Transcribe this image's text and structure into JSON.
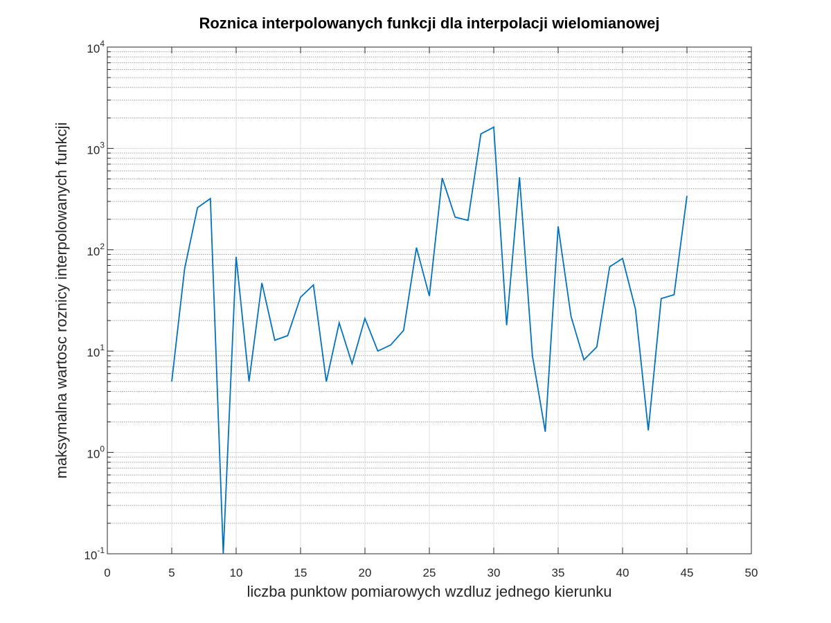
{
  "chart_data": {
    "type": "line",
    "title": "Roznica interpolowanych funkcji dla interpolacji wielomianowej",
    "xlabel": "liczba punktow pomiarowych wzdluz jednego kierunku",
    "ylabel": "maksymalna wartosc roznicy interpolowanych funkcji",
    "xlim": [
      0,
      50
    ],
    "ylim": [
      0.1,
      10000
    ],
    "yscale": "log",
    "grid": true,
    "x_ticks": [
      "0",
      "5",
      "10",
      "15",
      "20",
      "25",
      "30",
      "35",
      "40",
      "45",
      "50"
    ],
    "y_ticks": [
      {
        "base": "10",
        "exp": "-1"
      },
      {
        "base": "10",
        "exp": "0"
      },
      {
        "base": "10",
        "exp": "1"
      },
      {
        "base": "10",
        "exp": "2"
      },
      {
        "base": "10",
        "exp": "3"
      },
      {
        "base": "10",
        "exp": "4"
      }
    ],
    "series": [
      {
        "color": "#0072bd",
        "x": [
          5,
          6,
          7,
          8,
          9,
          10,
          11,
          12,
          13,
          14,
          15,
          16,
          17,
          18,
          19,
          20,
          21,
          22,
          23,
          24,
          25,
          26,
          27,
          28,
          29,
          30,
          31,
          32,
          33,
          34,
          35,
          36,
          37,
          38,
          39,
          40,
          41,
          42,
          43,
          44,
          45
        ],
        "values": [
          5,
          65,
          260,
          320,
          0.1,
          85,
          5,
          47,
          12.8,
          14.2,
          34,
          45,
          5,
          19,
          7.5,
          21,
          10,
          11.5,
          16,
          105,
          35,
          510,
          210,
          195,
          1390,
          1620,
          18,
          520,
          9,
          1.6,
          170,
          22,
          8.2,
          11,
          68,
          82,
          26,
          1.65,
          33,
          36,
          340
        ]
      }
    ]
  }
}
